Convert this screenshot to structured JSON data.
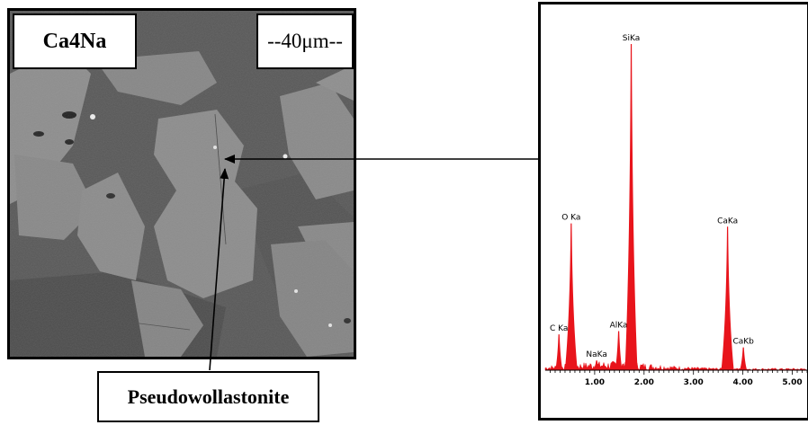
{
  "sem_image": {
    "sample_label": "Ca4Na",
    "scale_label": "--40μm--"
  },
  "phase_label": "Pseudowollastonite",
  "chart_data": {
    "type": "line",
    "title": "",
    "xlabel": "",
    "ylabel": "",
    "xlim": [
      0.0,
      5.3
    ],
    "ylim": [
      0,
      100
    ],
    "x_ticks": [
      "1.00",
      "2.00",
      "3.00",
      "4.00",
      "5.00"
    ],
    "x_tick_values": [
      1.0,
      2.0,
      3.0,
      4.0,
      5.0
    ],
    "grid": false,
    "legend": "none",
    "series_color": "#e8141b",
    "peaks": [
      {
        "label": "C Ka",
        "x": 0.277,
        "y": 11
      },
      {
        "label": "O Ka",
        "x": 0.525,
        "y": 45
      },
      {
        "label": "NaKa",
        "x": 1.04,
        "y": 3
      },
      {
        "label": "AlKa",
        "x": 1.486,
        "y": 12
      },
      {
        "label": "SiKa",
        "x": 1.74,
        "y": 100
      },
      {
        "label": "CaKa",
        "x": 3.69,
        "y": 44
      },
      {
        "label": "CaKb",
        "x": 4.01,
        "y": 7
      }
    ]
  }
}
